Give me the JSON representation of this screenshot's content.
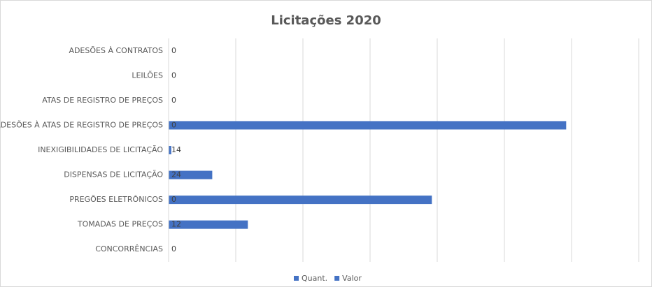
{
  "chart_data": {
    "type": "bar",
    "orientation": "horizontal",
    "title": "Licitações 2020",
    "categories": [
      "ADESÕES À CONTRATOS",
      "LEILÕES",
      "ATAS DE REGISTRO DE PREÇOS",
      "ADESÕES À ATAS DE REGISTRO DE PREÇOS",
      "INEXIGIBILIDADES DE LICITAÇÃO",
      "DISPENSAS DE LICITAÇÃO",
      "PREGÕES ELETRÔNICOS",
      "TOMADAS DE PREÇOS",
      "CONCORRÊNCIAS"
    ],
    "series": [
      {
        "name": "Quant.",
        "color": "#4472c4",
        "values": [
          0,
          0,
          0,
          0,
          14,
          24,
          0,
          12,
          0
        ]
      },
      {
        "name": "Valor",
        "color": "#4472c4",
        "values": [
          0,
          0,
          0,
          5920000,
          40000,
          650000,
          3920000,
          1180000,
          0
        ]
      }
    ],
    "xlim": [
      0,
      7000000
    ],
    "xticks": [
      0,
      1000000,
      2000000,
      3000000,
      4000000,
      5000000,
      6000000,
      7000000
    ],
    "grid": true,
    "legend": "bottom"
  }
}
